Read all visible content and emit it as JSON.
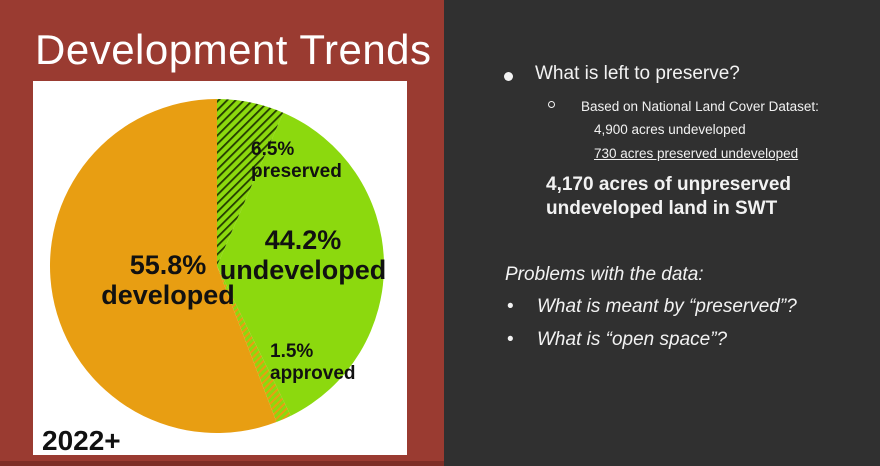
{
  "slide": {
    "title": "Development Trends",
    "colors": {
      "left_panel_bg": "#9a3b31",
      "left_panel_bottom_strip": "#7d2e26",
      "right_panel_bg": "#303030",
      "card_bg": "#ffffff",
      "text_light": "#f2f2f2",
      "text_dark": "#111111"
    }
  },
  "chart_data": {
    "type": "pie",
    "annotation": "2022+",
    "start_angle_deg": 0,
    "clockwise": true,
    "slices": [
      {
        "name": "preserved",
        "label": "6.5%",
        "sublabel": "preserved",
        "value_pct": 6.5,
        "draw_pct": 6.5,
        "style": "green-dark-hatch"
      },
      {
        "name": "undeveloped",
        "label": "44.2%",
        "sublabel": "undeveloped",
        "value_pct": 44.2,
        "draw_pct": 36.2,
        "style": "solid-green"
      },
      {
        "name": "approved",
        "label": "1.5%",
        "sublabel": "approved",
        "value_pct": 1.5,
        "draw_pct": 1.5,
        "style": "green-orange-hatch"
      },
      {
        "name": "developed",
        "label": "55.8%",
        "sublabel": "developed",
        "value_pct": 55.8,
        "draw_pct": 55.8,
        "style": "solid-orange"
      }
    ],
    "colors": {
      "green": "#8cd90e",
      "orange": "#e89e12",
      "hatch_dark": "#233c00"
    }
  },
  "right_panel": {
    "bullet1": "What is left to preserve?",
    "sub_bullet": "Based on National Land Cover Dataset:",
    "detail_line1": "4,900 acres undeveloped",
    "detail_line2": "730 acres preserved undeveloped",
    "bold_line1": "4,170 acres of unpreserved",
    "bold_line2": "undeveloped land in SWT",
    "problems_heading": "Problems with the data:",
    "problems": [
      "What is meant by “preserved”?",
      "What is “open space”?"
    ],
    "bullet_glyph": "•"
  }
}
